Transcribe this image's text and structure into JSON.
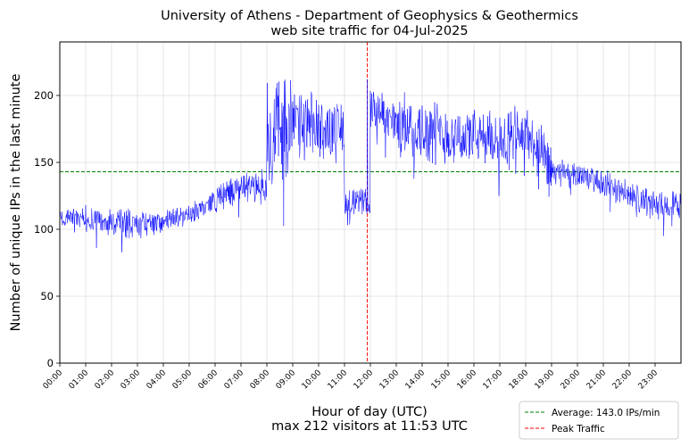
{
  "chart_data": {
    "type": "line",
    "title": "University of Athens - Department of Geophysics & Geothermics",
    "subtitle": "web site traffic for 04-Jul-2025",
    "xlabel": "Hour of day (UTC)",
    "xlabel_note": "max 212 visitors at 11:53 UTC",
    "ylabel": "Number of unique IPs in the last minute",
    "xlim": [
      0,
      1440
    ],
    "ylim": [
      0,
      240
    ],
    "yticks": [
      0,
      50,
      100,
      150,
      200
    ],
    "xticks": [
      "00:00",
      "01:00",
      "02:00",
      "03:00",
      "04:00",
      "05:00",
      "06:00",
      "07:00",
      "08:00",
      "09:00",
      "10:00",
      "11:00",
      "12:00",
      "13:00",
      "14:00",
      "15:00",
      "16:00",
      "17:00",
      "18:00",
      "19:00",
      "20:00",
      "21:00",
      "22:00",
      "23:00"
    ],
    "grid": true,
    "series": [
      {
        "name": "",
        "color": "#0000ff",
        "sample_interval_minutes": 1,
        "hourly_mean": [
          110,
          109,
          105,
          103,
          106,
          110,
          122,
          132,
          175,
          178,
          175,
          120,
          192,
          178,
          175,
          170,
          168,
          167,
          172,
          143,
          140,
          135,
          125,
          118
        ],
        "hourly_spread": [
          6,
          9,
          10,
          8,
          7,
          7,
          9,
          10,
          35,
          22,
          18,
          9,
          14,
          20,
          20,
          18,
          18,
          18,
          18,
          9,
          8,
          9,
          10,
          9
        ]
      }
    ],
    "reference_lines": [
      {
        "orientation": "horizontal",
        "y": 143.0,
        "color": "#008000",
        "style": "dashed",
        "label": "Average: 143.0 IPs/min"
      },
      {
        "orientation": "vertical",
        "x_label": "11:53",
        "x": 713,
        "color": "#ff0000",
        "style": "dashed",
        "label": "Peak Traffic",
        "peak_value": 212
      }
    ],
    "legend": {
      "placement": "bottom-right",
      "entries": [
        {
          "label": "Average: 143.0 IPs/min",
          "color": "#008000",
          "style": "dashed"
        },
        {
          "label": "Peak Traffic",
          "color": "#ff0000",
          "style": "dashed"
        }
      ]
    }
  }
}
